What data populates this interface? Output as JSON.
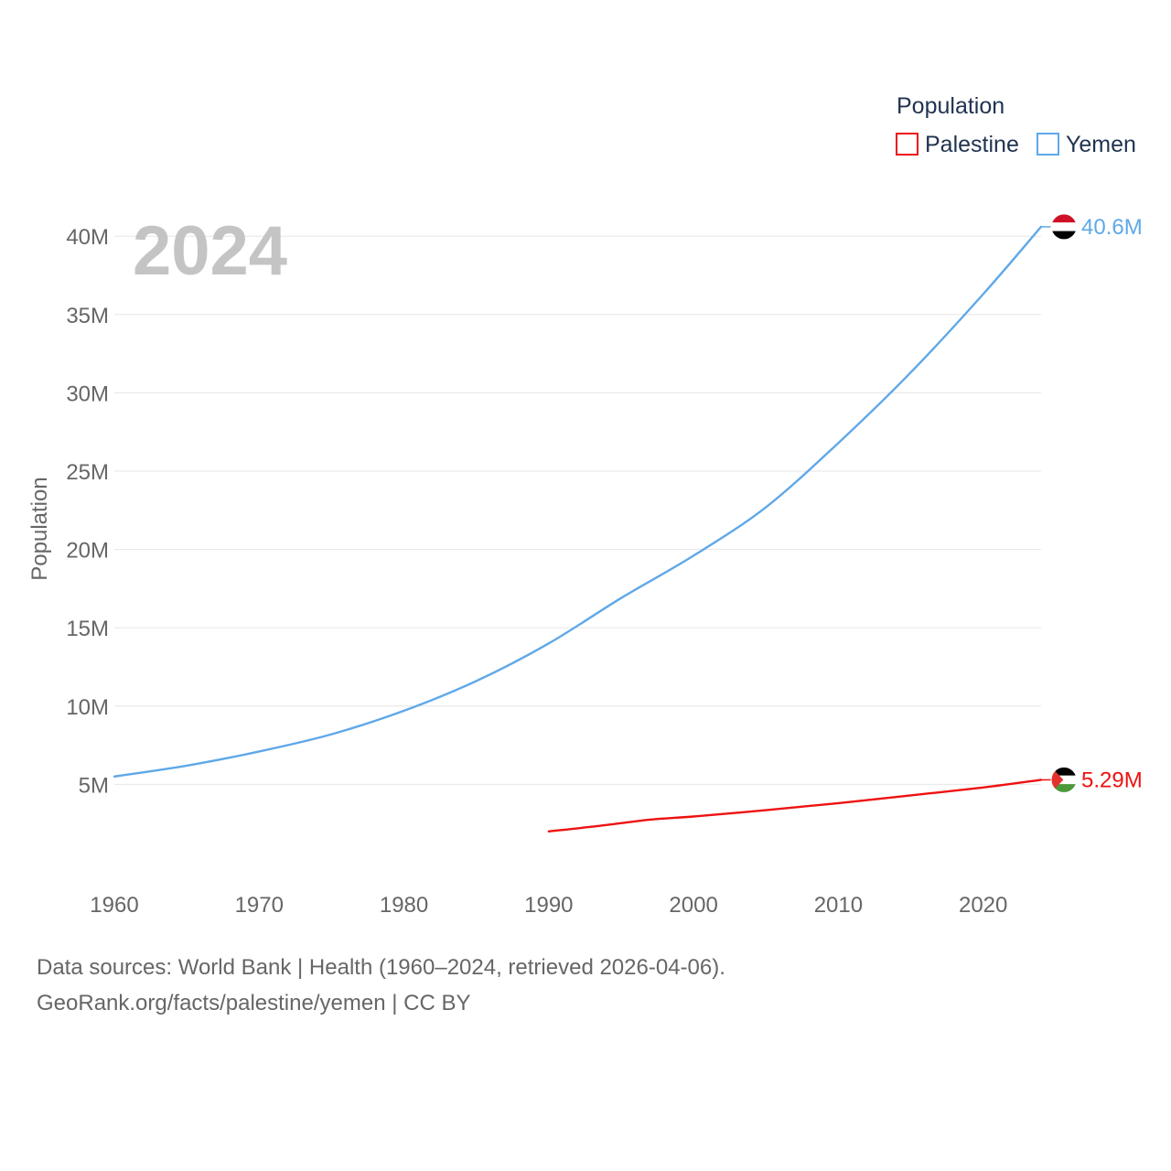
{
  "chart_data": {
    "type": "line",
    "year_display": "2024",
    "ylabel": "Population",
    "legend_title": "Population",
    "legend_position": "top-right",
    "ylim": [
      0,
      42000000
    ],
    "xlim": [
      1960,
      2024
    ],
    "x_ticks": [
      1960,
      1970,
      1980,
      1990,
      2000,
      2010,
      2020
    ],
    "y_ticks": [
      {
        "value": 5000000,
        "label": "5M"
      },
      {
        "value": 10000000,
        "label": "10M"
      },
      {
        "value": 15000000,
        "label": "15M"
      },
      {
        "value": 20000000,
        "label": "20M"
      },
      {
        "value": 25000000,
        "label": "25M"
      },
      {
        "value": 30000000,
        "label": "30M"
      },
      {
        "value": 35000000,
        "label": "35M"
      },
      {
        "value": 40000000,
        "label": "40M"
      }
    ],
    "series": [
      {
        "name": "Palestine",
        "color": "#ee1111",
        "end_label": "5.29M",
        "flag": "palestine-flag",
        "x": [
          1990,
          1993,
          1997,
          2000,
          2005,
          2010,
          2015,
          2020,
          2024
        ],
        "values": [
          2000000,
          2300000,
          2750000,
          2950000,
          3350000,
          3800000,
          4300000,
          4800000,
          5290000
        ]
      },
      {
        "name": "Yemen",
        "color": "#5fa8e8",
        "end_label": "40.6M",
        "flag": "yemen-flag",
        "x": [
          1960,
          1965,
          1970,
          1975,
          1980,
          1985,
          1990,
          1995,
          2000,
          2005,
          2010,
          2015,
          2020,
          2024
        ],
        "values": [
          5500000,
          6200000,
          7100000,
          8200000,
          9700000,
          11600000,
          14000000,
          16900000,
          19600000,
          22700000,
          26800000,
          31300000,
          36300000,
          40600000
        ]
      }
    ]
  },
  "footer": {
    "line1": "Data sources: World Bank | Health (1960–2024, retrieved 2026-04-06).",
    "line2": "GeoRank.org/facts/palestine/yemen | CC BY"
  }
}
